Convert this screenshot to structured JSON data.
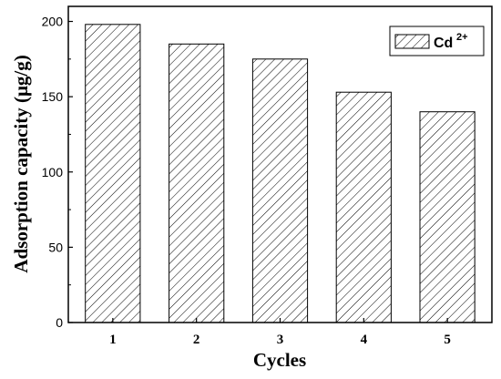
{
  "chart_data": {
    "type": "bar",
    "categories": [
      "1",
      "2",
      "3",
      "4",
      "5"
    ],
    "series": [
      {
        "name": "Cd2+",
        "values": [
          198,
          185,
          175,
          153,
          140
        ]
      }
    ],
    "legend": {
      "base": "Cd",
      "sup": "2+",
      "position": "top-right"
    },
    "xlabel": "Cycles",
    "ylabel": "Adsorption capacity (μg/g)",
    "ylim": [
      0,
      210
    ],
    "yticks": [
      0,
      50,
      100,
      150,
      200
    ],
    "ytick_labels": [
      "0",
      "50",
      "100",
      "150",
      "200"
    ],
    "grid": false,
    "bar_fill": "diagonal-hatch",
    "colors": {
      "axis": "#000000",
      "bar_edge": "#000000",
      "hatch": "#000000",
      "background": "#ffffff"
    }
  }
}
